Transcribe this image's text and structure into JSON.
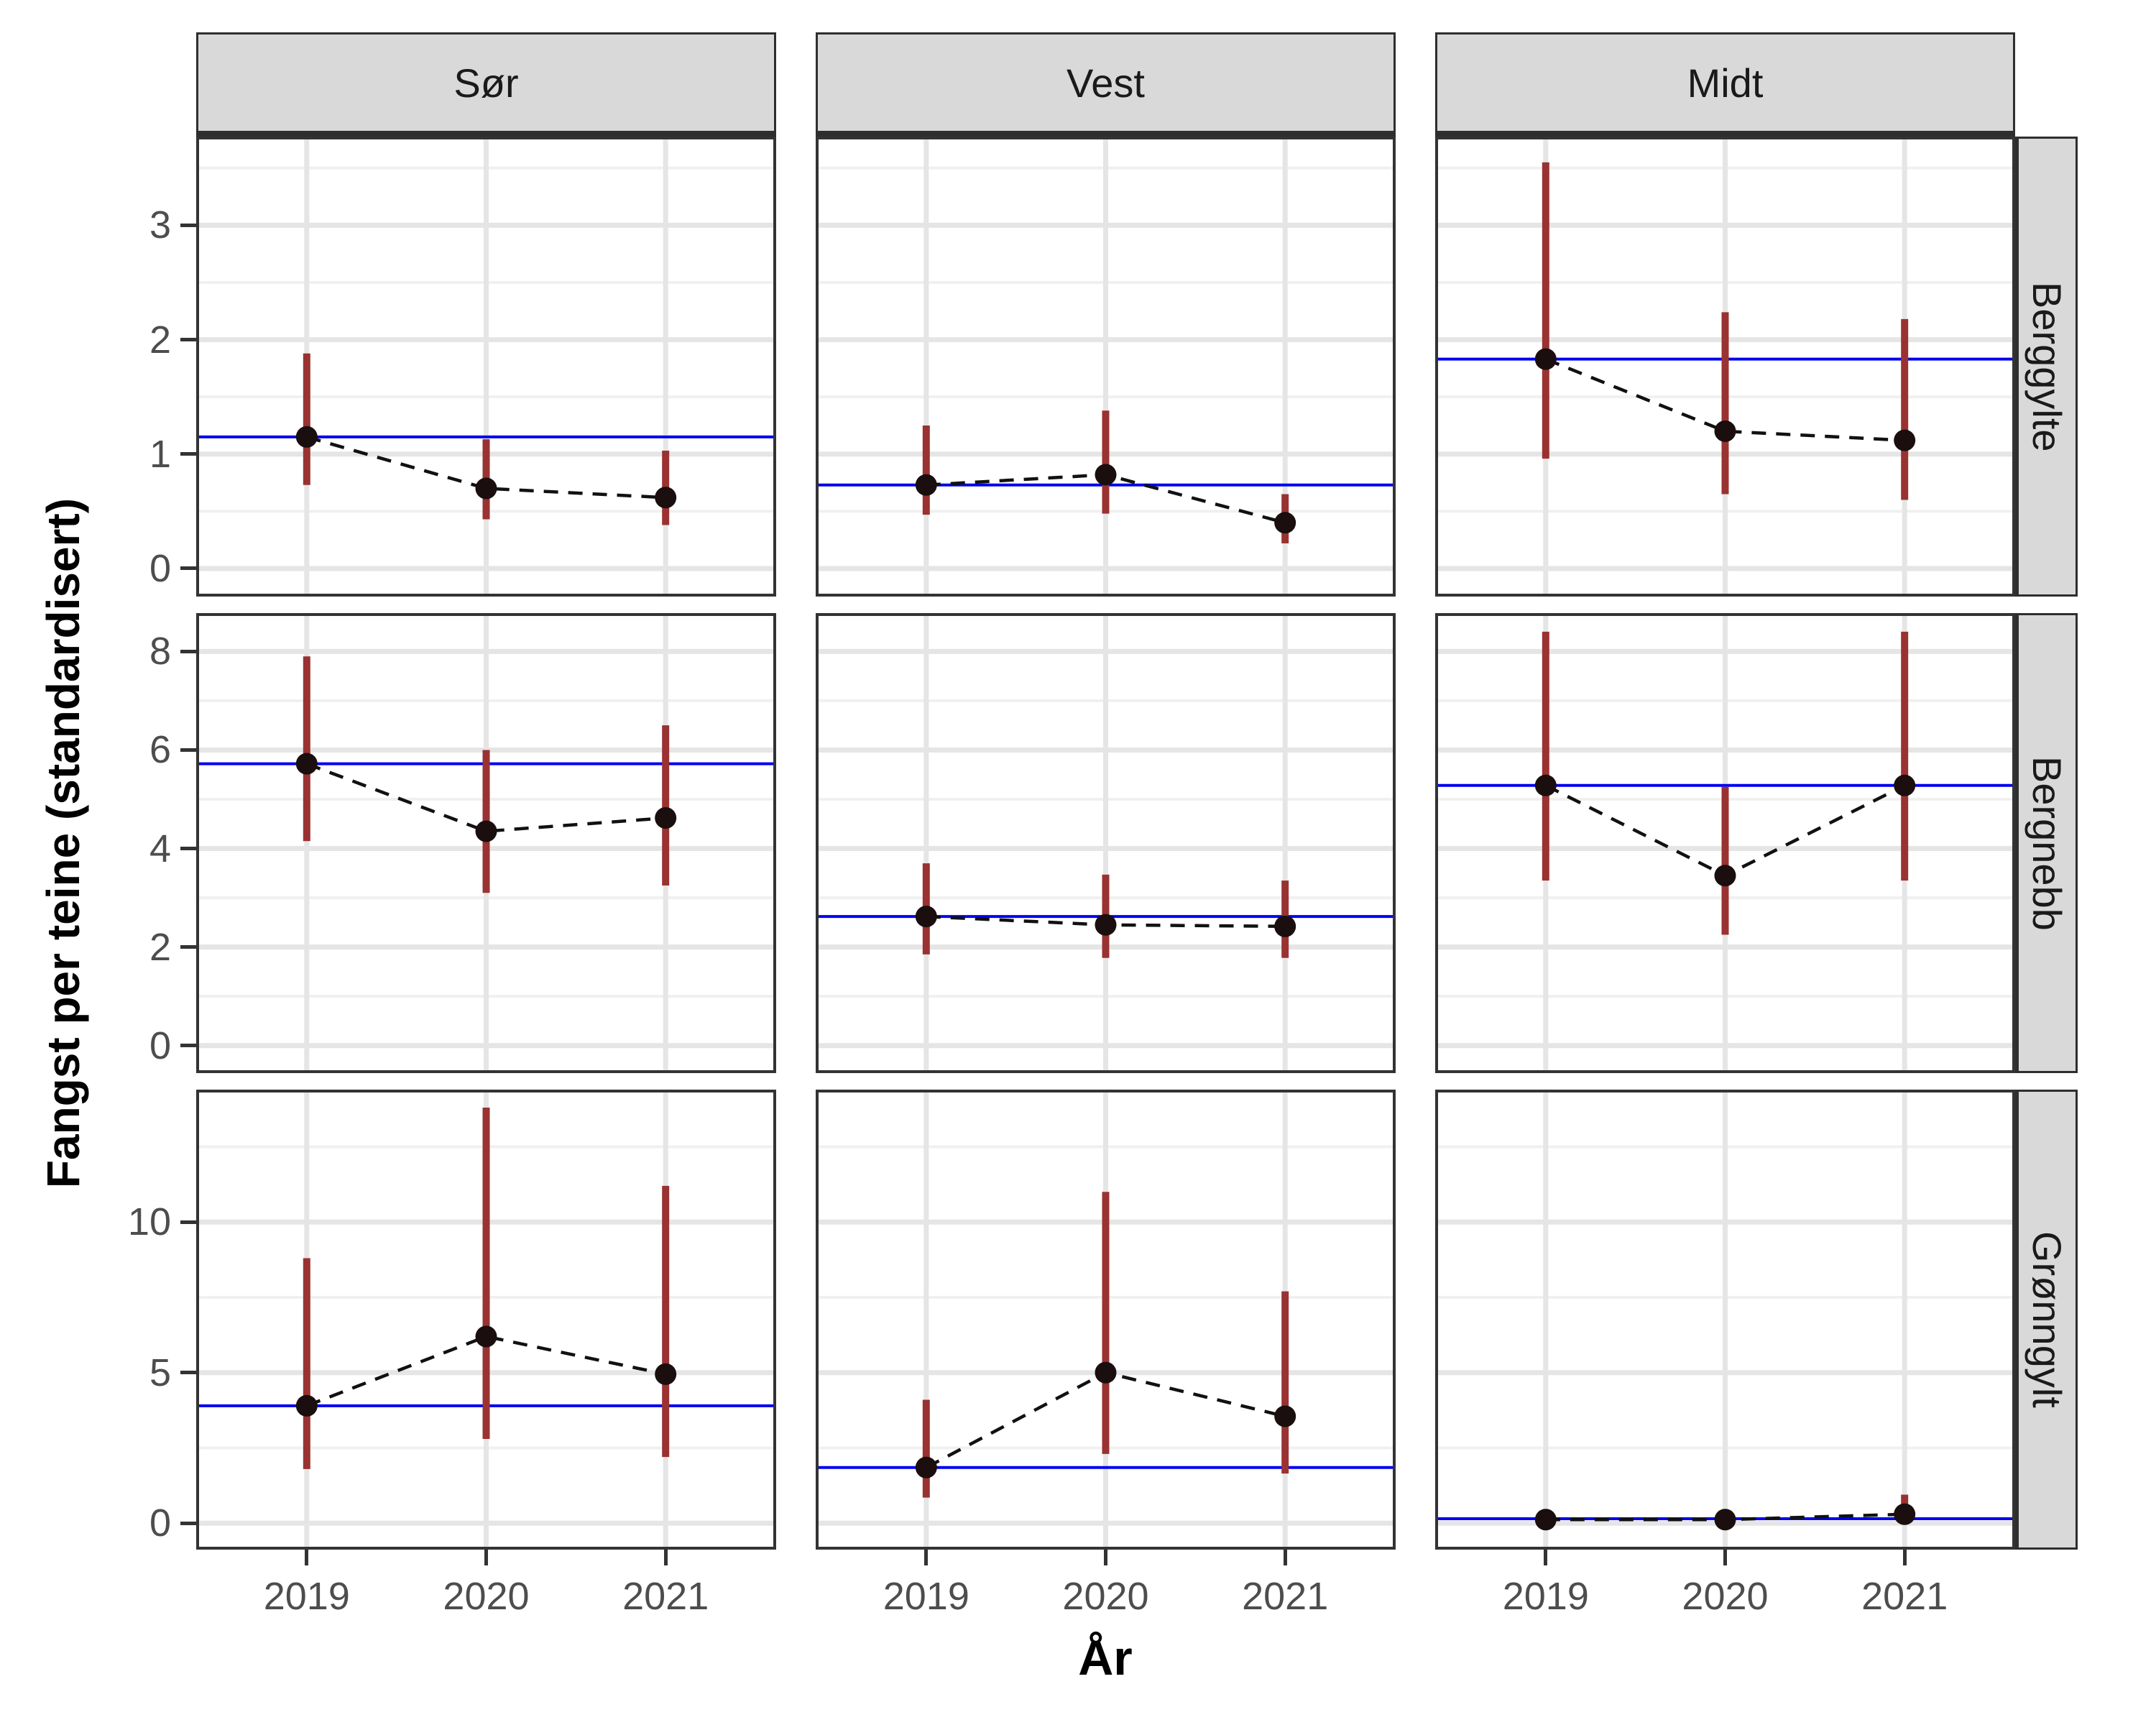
{
  "figure": {
    "y_axis_title": "Fangst per teine (standardisert)",
    "x_axis_title": "År",
    "col_facets": [
      "Sør",
      "Vest",
      "Midt"
    ],
    "row_facets": [
      "Berggylte",
      "Bergnebb",
      "Grønngylt"
    ],
    "years": [
      "2019",
      "2020",
      "2021"
    ]
  },
  "colors": {
    "error_bar": "#9a3232",
    "point": "#1a0e0e",
    "reference_line": "#0000f0",
    "trend_line": "#111111",
    "strip_fill": "#d9d9d9",
    "panel_border": "#333333",
    "grid_major": "#e5e5e5",
    "grid_minor": "#f0f0f0",
    "tick_label": "#4d4d4d"
  },
  "chart_data": {
    "type": "scatter",
    "subtype": "faceted-pointrange-errorbar",
    "x_label": "År",
    "y_label": "Fangst per teine (standardisert)",
    "col_facets": [
      "Sør",
      "Vest",
      "Midt"
    ],
    "row_facets": [
      "Berggylte",
      "Bergnebb",
      "Grønngylt"
    ],
    "x_categories": [
      2019,
      2020,
      2021
    ],
    "legend": "none",
    "grid": "on",
    "rows": [
      {
        "label": "Berggylte",
        "ylim": [
          -0.22,
          3.75
        ],
        "yticks": [
          0,
          1,
          2,
          3
        ],
        "yticks_minor": [
          0.5,
          1.5,
          2.5,
          3.5
        ]
      },
      {
        "label": "Bergnebb",
        "ylim": [
          -0.5,
          8.72
        ],
        "yticks": [
          0,
          2,
          4,
          6,
          8
        ],
        "yticks_minor": [
          1,
          3,
          5,
          7
        ]
      },
      {
        "label": "Grønngylt",
        "ylim": [
          -0.78,
          14.3
        ],
        "yticks": [
          0,
          5,
          10
        ],
        "yticks_minor": [
          2.5,
          7.5,
          12.5
        ]
      }
    ],
    "panels": [
      {
        "row_facet": "Berggylte",
        "col_facet": "Sør",
        "x": [
          2019,
          2020,
          2021
        ],
        "y": [
          1.15,
          0.7,
          0.62
        ],
        "ci_low": [
          0.73,
          0.43,
          0.38
        ],
        "ci_high": [
          1.88,
          1.13,
          1.03
        ],
        "ref_line": 1.15
      },
      {
        "row_facet": "Berggylte",
        "col_facet": "Vest",
        "x": [
          2019,
          2020,
          2021
        ],
        "y": [
          0.73,
          0.82,
          0.4
        ],
        "ci_low": [
          0.47,
          0.48,
          0.22
        ],
        "ci_high": [
          1.25,
          1.38,
          0.65
        ],
        "ref_line": 0.73
      },
      {
        "row_facet": "Berggylte",
        "col_facet": "Midt",
        "x": [
          2019,
          2020,
          2021
        ],
        "y": [
          1.83,
          1.2,
          1.12
        ],
        "ci_low": [
          0.96,
          0.65,
          0.6
        ],
        "ci_high": [
          3.55,
          2.24,
          2.18
        ],
        "ref_line": 1.83
      },
      {
        "row_facet": "Bergnebb",
        "col_facet": "Sør",
        "x": [
          2019,
          2020,
          2021
        ],
        "y": [
          5.72,
          4.35,
          4.62
        ],
        "ci_low": [
          4.15,
          3.1,
          3.25
        ],
        "ci_high": [
          7.9,
          6.0,
          6.5
        ],
        "ref_line": 5.72
      },
      {
        "row_facet": "Bergnebb",
        "col_facet": "Vest",
        "x": [
          2019,
          2020,
          2021
        ],
        "y": [
          2.62,
          2.45,
          2.42
        ],
        "ci_low": [
          1.85,
          1.78,
          1.78
        ],
        "ci_high": [
          3.7,
          3.47,
          3.35
        ],
        "ref_line": 2.62
      },
      {
        "row_facet": "Bergnebb",
        "col_facet": "Midt",
        "x": [
          2019,
          2020,
          2021
        ],
        "y": [
          5.28,
          3.45,
          5.28
        ],
        "ci_low": [
          3.35,
          2.25,
          3.35
        ],
        "ci_high": [
          8.4,
          5.25,
          8.4
        ],
        "ref_line": 5.28
      },
      {
        "row_facet": "Grønngylt",
        "col_facet": "Sør",
        "x": [
          2019,
          2020,
          2021
        ],
        "y": [
          3.9,
          6.2,
          4.95
        ],
        "ci_low": [
          1.8,
          2.8,
          2.2
        ],
        "ci_high": [
          8.8,
          13.8,
          11.2
        ],
        "ref_line": 3.9
      },
      {
        "row_facet": "Grønngylt",
        "col_facet": "Vest",
        "x": [
          2019,
          2020,
          2021
        ],
        "y": [
          1.85,
          5.0,
          3.55
        ],
        "ci_low": [
          0.85,
          2.3,
          1.65
        ],
        "ci_high": [
          4.1,
          11.0,
          7.7
        ],
        "ref_line": 1.85
      },
      {
        "row_facet": "Grønngylt",
        "col_facet": "Midt",
        "x": [
          2019,
          2020,
          2021
        ],
        "y": [
          0.12,
          0.12,
          0.3
        ],
        "ci_low": [
          0.02,
          0.02,
          0.08
        ],
        "ci_high": [
          0.3,
          0.35,
          0.95
        ],
        "ref_line": 0.15
      }
    ]
  }
}
